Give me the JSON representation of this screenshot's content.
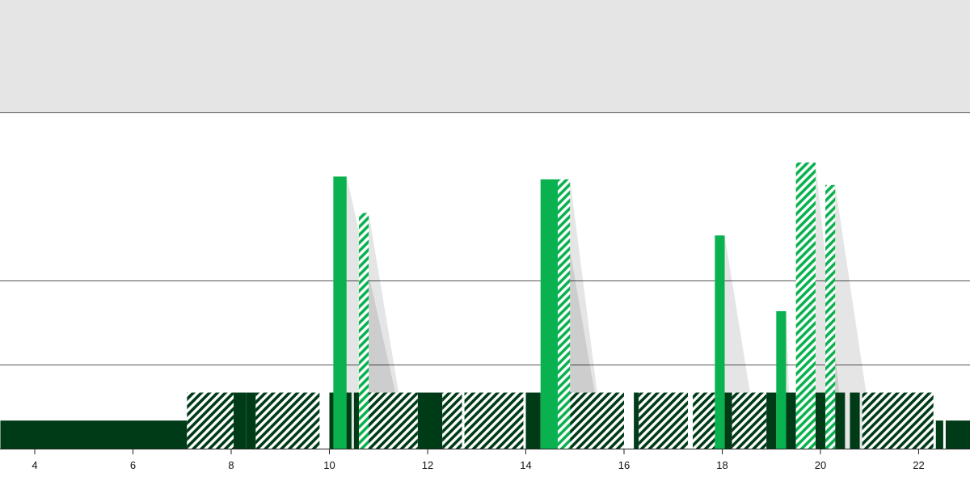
{
  "chart_data": {
    "type": "bar",
    "xlim": [
      3.3,
      23.05
    ],
    "x_ticks": [
      4,
      6,
      8,
      10,
      12,
      14,
      16,
      18,
      20,
      22
    ],
    "tick_labels": [
      "4",
      "6",
      "8",
      "10",
      "12",
      "14",
      "16",
      "18",
      "20",
      "22"
    ],
    "grid": "horizontal",
    "colors": {
      "dark": "#003b17",
      "bright": "#0ab24f",
      "grey_band": "#e5e5e5",
      "shadow": "rgba(0,0,0,0.10)",
      "gridline": "#555555"
    },
    "base_segments": [
      {
        "x0": 3.3,
        "x1": 7.1,
        "level": 0.1,
        "style": "solid"
      },
      {
        "x0": 7.1,
        "x1": 8.05,
        "level": 0.2,
        "style": "hatched"
      },
      {
        "x0": 8.05,
        "x1": 8.3,
        "level": 0.2,
        "style": "solid"
      },
      {
        "x0": 8.3,
        "x1": 8.5,
        "level": 0.2,
        "style": "solid"
      },
      {
        "x0": 8.5,
        "x1": 8.8,
        "level": 0.2,
        "style": "hatched"
      },
      {
        "x0": 8.8,
        "x1": 9.8,
        "level": 0.2,
        "style": "hatched"
      },
      {
        "x0": 10.0,
        "x1": 10.3,
        "level": 0.2,
        "style": "solid"
      },
      {
        "x0": 10.3,
        "x1": 10.45,
        "level": 0.2,
        "style": "solid"
      },
      {
        "x0": 10.5,
        "x1": 10.8,
        "level": 0.2,
        "style": "solid"
      },
      {
        "x0": 10.8,
        "x1": 11.8,
        "level": 0.2,
        "style": "hatched"
      },
      {
        "x0": 11.8,
        "x1": 12.3,
        "level": 0.2,
        "style": "solid"
      },
      {
        "x0": 12.3,
        "x1": 12.7,
        "level": 0.2,
        "style": "hatched"
      },
      {
        "x0": 12.75,
        "x1": 13.95,
        "level": 0.2,
        "style": "hatched"
      },
      {
        "x0": 14.0,
        "x1": 14.3,
        "level": 0.2,
        "style": "solid"
      },
      {
        "x0": 14.9,
        "x1": 16.0,
        "level": 0.2,
        "style": "hatched"
      },
      {
        "x0": 16.2,
        "x1": 16.3,
        "level": 0.2,
        "style": "solid"
      },
      {
        "x0": 16.3,
        "x1": 17.3,
        "level": 0.2,
        "style": "hatched"
      },
      {
        "x0": 17.4,
        "x1": 17.85,
        "level": 0.2,
        "style": "hatched"
      },
      {
        "x0": 18.05,
        "x1": 18.2,
        "level": 0.2,
        "style": "solid"
      },
      {
        "x0": 18.2,
        "x1": 18.9,
        "level": 0.2,
        "style": "hatched"
      },
      {
        "x0": 18.9,
        "x1": 19.1,
        "level": 0.2,
        "style": "solid"
      },
      {
        "x0": 19.3,
        "x1": 19.5,
        "level": 0.2,
        "style": "solid"
      },
      {
        "x0": 19.9,
        "x1": 20.0,
        "level": 0.2,
        "style": "solid"
      },
      {
        "x0": 20.0,
        "x1": 20.1,
        "level": 0.2,
        "style": "solid"
      },
      {
        "x0": 20.3,
        "x1": 20.5,
        "level": 0.2,
        "style": "solid"
      },
      {
        "x0": 20.6,
        "x1": 20.8,
        "level": 0.2,
        "style": "solid"
      },
      {
        "x0": 20.85,
        "x1": 22.3,
        "level": 0.2,
        "style": "hatched"
      },
      {
        "x0": 22.35,
        "x1": 22.5,
        "level": 0.1,
        "style": "solid"
      },
      {
        "x0": 22.55,
        "x1": 23.05,
        "level": 0.1,
        "style": "solid"
      }
    ],
    "peaks": [
      {
        "x0": 10.08,
        "x1": 10.35,
        "value": 0.97,
        "style": "solid",
        "shadow_to": 11.6
      },
      {
        "x0": 10.6,
        "x1": 10.8,
        "value": 0.84,
        "style": "hatched",
        "shadow_to": 11.6
      },
      {
        "x0": 14.3,
        "x1": 14.65,
        "value": 0.96,
        "style": "solid",
        "shadow_to": 15.6
      },
      {
        "x0": 14.65,
        "x1": 14.9,
        "value": 0.96,
        "style": "hatched",
        "shadow_to": 15.6
      },
      {
        "x0": 17.85,
        "x1": 18.05,
        "value": 0.76,
        "style": "solid",
        "shadow_to": 18.75
      },
      {
        "x0": 19.1,
        "x1": 19.3,
        "value": 0.49,
        "style": "solid",
        "shadow_to": 19.4
      },
      {
        "x0": 19.5,
        "x1": 19.9,
        "value": 1.02,
        "style": "hatched",
        "shadow_to": 20.5
      },
      {
        "x0": 20.1,
        "x1": 20.3,
        "value": 0.94,
        "style": "hatched",
        "shadow_to": 21.1
      }
    ]
  }
}
